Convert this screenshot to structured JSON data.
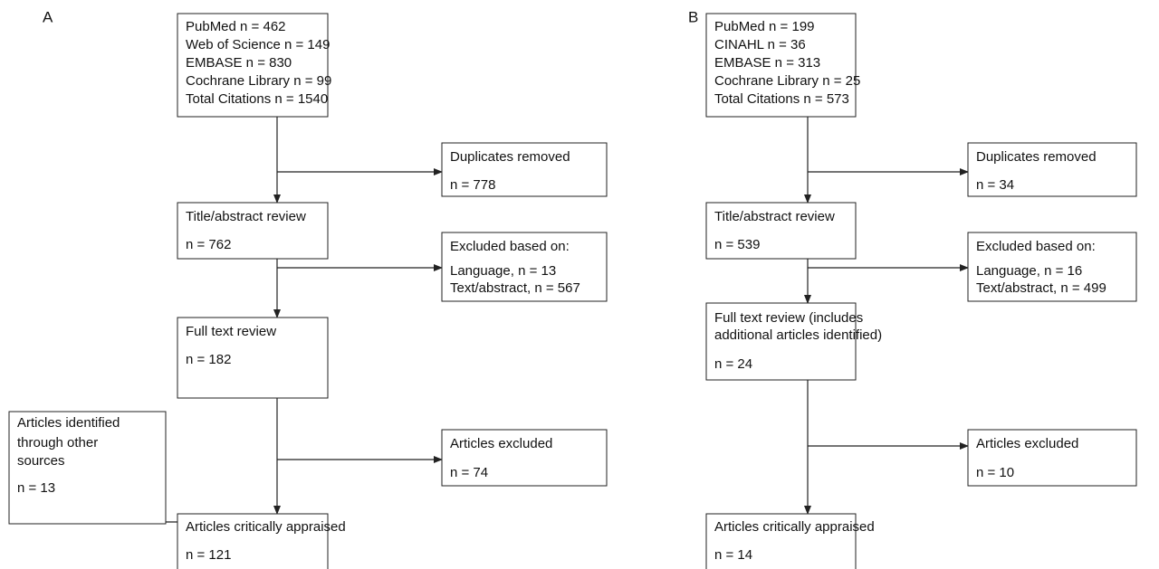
{
  "panels": [
    {
      "label": "A",
      "nodes": [
        {
          "lines": [
            "PubMed n = 462",
            "Web of Science n = 149",
            "EMBASE n = 830",
            "Cochrane Library n = 99",
            "Total Citations n = 1540"
          ]
        },
        {
          "lines": [
            "Duplicates removed",
            "n = 778"
          ]
        },
        {
          "lines": [
            "Title/abstract review",
            "n = 762"
          ]
        },
        {
          "lines": [
            "Excluded based on:",
            "Language, n = 13",
            "Text/abstract, n = 567"
          ]
        },
        {
          "lines": [
            "Full text review",
            "n = 182"
          ]
        },
        {
          "lines": [
            "Articles identified",
            "through other",
            "sources",
            "n = 13"
          ]
        },
        {
          "lines": [
            "Articles excluded",
            "n = 74"
          ]
        },
        {
          "lines": [
            "Articles critically appraised",
            "n = 121"
          ]
        }
      ]
    },
    {
      "label": "B",
      "nodes": [
        {
          "lines": [
            "PubMed n = 199",
            "CINAHL n = 36",
            "EMBASE n = 313",
            "Cochrane Library n = 25",
            "Total Citations n = 573"
          ]
        },
        {
          "lines": [
            "Duplicates removed",
            "n = 34"
          ]
        },
        {
          "lines": [
            "Title/abstract review",
            "n = 539"
          ]
        },
        {
          "lines": [
            "Excluded based on:",
            "Language, n = 16",
            "Text/abstract, n = 499"
          ]
        },
        {
          "lines": [
            "Full text review (includes",
            "additional articles identified)",
            "n = 24"
          ]
        },
        {
          "lines": [
            "Articles excluded",
            "n = 10"
          ]
        },
        {
          "lines": [
            "Articles critically appraised",
            "n = 14"
          ]
        }
      ]
    }
  ]
}
